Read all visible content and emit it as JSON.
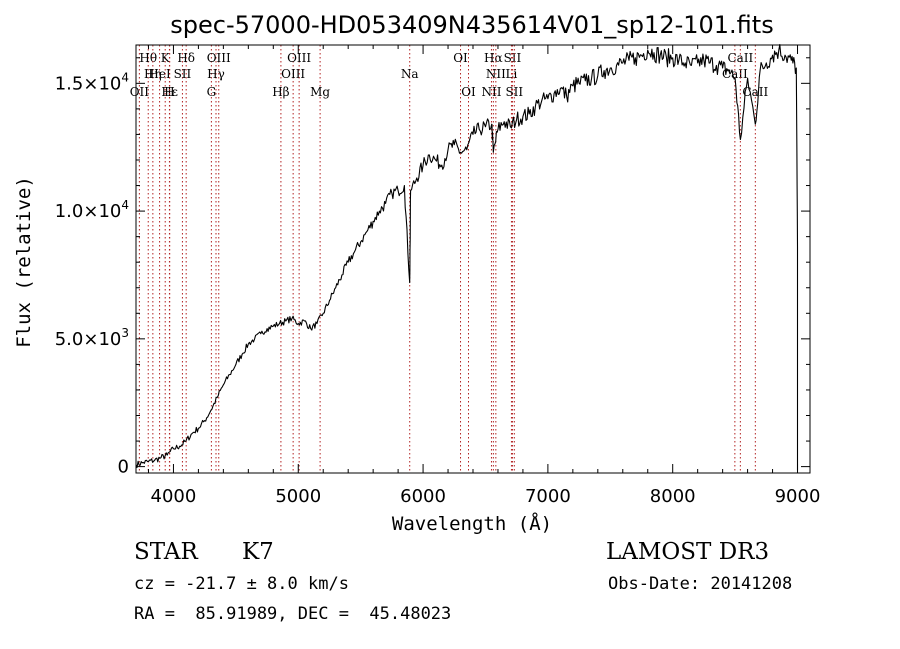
{
  "chart_data": {
    "type": "line",
    "title": "spec-57000-HD053409N435614V01_sp12-101.fits",
    "xlabel": "Wavelength (Å)",
    "ylabel": "Flux (relative)",
    "xlim": [
      3700,
      9100
    ],
    "ylim": [
      -250,
      16500
    ],
    "x_ticks": [
      4000,
      5000,
      6000,
      7000,
      8000,
      9000
    ],
    "y_ticks": [
      {
        "value": 0,
        "label": "0",
        "mant": "",
        "exp": ""
      },
      {
        "value": 5000,
        "label": "",
        "mant": "5.0×10",
        "exp": "3"
      },
      {
        "value": 10000,
        "label": "",
        "mant": "1.0×10",
        "exp": "4"
      },
      {
        "value": 15000,
        "label": "",
        "mant": "1.5×10",
        "exp": "4"
      }
    ],
    "series": [
      {
        "name": "flux",
        "x": [
          3700,
          3750,
          3800,
          3850,
          3900,
          3950,
          4000,
          4050,
          4100,
          4150,
          4200,
          4250,
          4300,
          4350,
          4400,
          4450,
          4500,
          4550,
          4600,
          4650,
          4700,
          4750,
          4800,
          4850,
          4900,
          4950,
          5000,
          5050,
          5100,
          5150,
          5200,
          5250,
          5300,
          5350,
          5400,
          5450,
          5500,
          5550,
          5600,
          5650,
          5700,
          5750,
          5800,
          5850,
          5893,
          5900,
          5950,
          6000,
          6050,
          6100,
          6150,
          6200,
          6250,
          6300,
          6350,
          6400,
          6450,
          6500,
          6550,
          6563,
          6600,
          6650,
          6700,
          6750,
          6800,
          6850,
          6900,
          6950,
          7000,
          7050,
          7100,
          7150,
          7200,
          7250,
          7300,
          7350,
          7400,
          7450,
          7500,
          7550,
          7600,
          7650,
          7700,
          7750,
          7800,
          7850,
          7900,
          7950,
          8000,
          8050,
          8100,
          8150,
          8200,
          8250,
          8300,
          8350,
          8400,
          8450,
          8500,
          8542,
          8600,
          8662,
          8700,
          8750,
          8800,
          8850,
          8900,
          8950,
          8990,
          9000
        ],
        "y": [
          80,
          150,
          200,
          250,
          350,
          450,
          700,
          800,
          1000,
          1300,
          1500,
          1800,
          2200,
          2700,
          3200,
          3600,
          4000,
          4400,
          4800,
          5000,
          5200,
          5400,
          5500,
          5600,
          5700,
          5800,
          5600,
          5700,
          5400,
          5600,
          6000,
          6500,
          7000,
          7500,
          8000,
          8400,
          8800,
          9200,
          9600,
          10000,
          10300,
          10700,
          10800,
          11000,
          7200,
          10800,
          11300,
          11800,
          12200,
          12000,
          11800,
          12400,
          12600,
          12300,
          12400,
          13000,
          13200,
          13300,
          13400,
          12300,
          13200,
          13500,
          13300,
          13600,
          13700,
          13800,
          14100,
          14300,
          14400,
          14600,
          14800,
          14500,
          14900,
          15000,
          15100,
          15200,
          15300,
          15500,
          15600,
          15700,
          15800,
          15900,
          16000,
          16100,
          16300,
          16200,
          16100,
          16000,
          16000,
          15900,
          15800,
          15700,
          15800,
          15900,
          15800,
          15700,
          15600,
          15500,
          15200,
          12800,
          15200,
          13400,
          15500,
          15800,
          16100,
          16300,
          16100,
          15900,
          15600,
          8600
        ]
      }
    ],
    "lines": [
      {
        "name": "Hθ",
        "wave": 3798,
        "row": 1
      },
      {
        "name": "OII",
        "wave": 3727,
        "row": 3
      },
      {
        "name": "Hη",
        "wave": 3835,
        "row": 2
      },
      {
        "name": "HeI",
        "wave": 3889,
        "row": 2
      },
      {
        "name": "Hε",
        "wave": 3970,
        "row": 3
      },
      {
        "name": "K",
        "wave": 3934,
        "row": 1
      },
      {
        "name": "H",
        "wave": 3968,
        "row": 3
      },
      {
        "name": "SII",
        "wave": 4072,
        "row": 2
      },
      {
        "name": "Hδ",
        "wave": 4102,
        "row": 1
      },
      {
        "name": "G",
        "wave": 4304,
        "row": 3
      },
      {
        "name": "Hγ",
        "wave": 4341,
        "row": 2
      },
      {
        "name": "OIII",
        "wave": 4363,
        "row": 1
      },
      {
        "name": "Hβ",
        "wave": 4861,
        "row": 3
      },
      {
        "name": "OIII",
        "wave": 4959,
        "row": 2
      },
      {
        "name": "OIII",
        "wave": 5007,
        "row": 1
      },
      {
        "name": "Mg",
        "wave": 5175,
        "row": 3
      },
      {
        "name": "Na",
        "wave": 5893,
        "row": 2
      },
      {
        "name": "OI",
        "wave": 6300,
        "row": 1
      },
      {
        "name": "OI",
        "wave": 6364,
        "row": 3
      },
      {
        "name": "NII",
        "wave": 6548,
        "row": 3
      },
      {
        "name": "Hα",
        "wave": 6563,
        "row": 1
      },
      {
        "name": "NII",
        "wave": 6583,
        "row": 2
      },
      {
        "name": "Li",
        "wave": 6708,
        "row": 2
      },
      {
        "name": "SII",
        "wave": 6716,
        "row": 1
      },
      {
        "name": "SII",
        "wave": 6731,
        "row": 3
      },
      {
        "name": "CaII",
        "wave": 8498,
        "row": 2
      },
      {
        "name": "CaII",
        "wave": 8542,
        "row": 1
      },
      {
        "name": "CaII",
        "wave": 8662,
        "row": 3
      }
    ]
  },
  "info": {
    "class_label": "STAR",
    "subclass": "K7",
    "survey": "LAMOST DR3",
    "cz": "cz = -21.7 ± 8.0 km/s",
    "obs_date": "Obs-Date: 20141208",
    "coords": "RA =  85.91989, DEC =  45.48023"
  }
}
